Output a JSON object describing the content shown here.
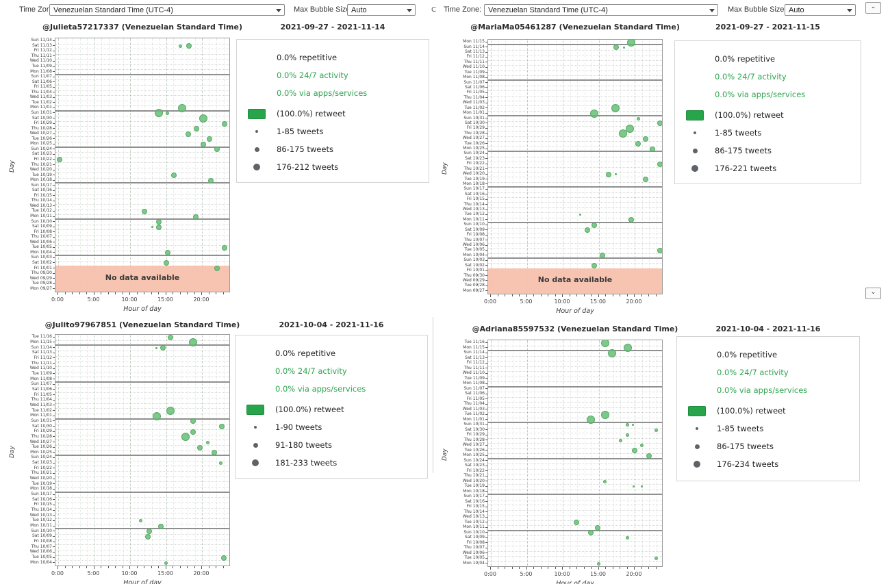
{
  "toolbar": {
    "left": {
      "time_zone_label": "Time Zone:",
      "time_zone_value": "Venezuelan Standard Time (UTC-4)",
      "max_bubble_size_label": "Max Bubble Size:",
      "max_bubble_size_value": "Auto"
    },
    "right": {
      "time_zone_label": "Time Zone:",
      "time_zone_value": "Venezuelan Standard Time (UTC-4)",
      "max_bubble_size_label": "Max Bubble Size:",
      "max_bubble_size_value": "Auto"
    },
    "stray_char": "C",
    "collapse_glyph": "⌄"
  },
  "colors": {
    "accent_green": "#2da44e",
    "bubble_green": "#69be77",
    "retweet_swatch": "#28a44a",
    "no_data_band": "#f7c1ad"
  },
  "chart_data": [
    {
      "type": "scatter",
      "title": "@Julieta57217337 (Venezuelan Standard Time)",
      "date_range": "2021-09-27 - 2021-11-14",
      "xlabel": "Hour of day",
      "ylabel": "Day",
      "x_ticks": [
        "0:00",
        "5:00",
        "10:00",
        "15:00",
        "20:00"
      ],
      "x_range_hours": [
        0,
        24
      ],
      "days": [
        "Sun 11/14",
        "Sat 11/13",
        "Fri 11/12",
        "Thu 11/11",
        "Wed 11/10",
        "Tue 11/09",
        "Mon 11/08",
        "Sun 11/07",
        "Sat 11/06",
        "Fri 11/05",
        "Thu 11/04",
        "Wed 11/03",
        "Tue 11/02",
        "Mon 11/01",
        "Sun 10/31",
        "Sat 10/30",
        "Fri 10/29",
        "Thu 10/28",
        "Wed 10/27",
        "Tue 10/26",
        "Mon 10/25",
        "Sun 10/24",
        "Sat 10/23",
        "Fri 10/22",
        "Thu 10/21",
        "Wed 10/20",
        "Tue 10/19",
        "Mon 10/18",
        "Sun 10/17",
        "Sat 10/16",
        "Fri 10/15",
        "Thu 10/14",
        "Wed 10/13",
        "Tue 10/12",
        "Mon 10/11",
        "Sun 10/10",
        "Sat 10/09",
        "Fri 10/08",
        "Thu 10/07",
        "Wed 10/06",
        "Tue 10/05",
        "Mon 10/04",
        "Sun 10/03",
        "Sat 10/02",
        "Fri 10/01",
        "Thu 09/30",
        "Wed 09/29",
        "Tue 09/28",
        "Mon 09/27"
      ],
      "no_data": {
        "label": "No data available",
        "rows_from_bottom": 5
      },
      "legend": {
        "repetitive": "0.0% repetitive",
        "always_on": "0.0% 24/7 activity",
        "apps": "0.0% via apps/services",
        "retweet": "(100.0%) retweet",
        "sizes": [
          "1-85 tweets",
          "86-175 tweets",
          "176-212 tweets"
        ]
      },
      "bubbles": [
        [
          "Sat 11/13",
          17.0,
          2
        ],
        [
          "Sat 11/13",
          18.2,
          3
        ],
        [
          "Mon 11/01",
          17.2,
          4
        ],
        [
          "Sun 10/31",
          14.0,
          4
        ],
        [
          "Sun 10/31",
          15.2,
          2
        ],
        [
          "Sat 10/30",
          20.2,
          4
        ],
        [
          "Fri 10/29",
          23.1,
          3
        ],
        [
          "Thu 10/28",
          19.2,
          3
        ],
        [
          "Wed 10/27",
          18.1,
          3
        ],
        [
          "Tue 10/26",
          21.0,
          3
        ],
        [
          "Mon 10/25",
          20.2,
          3
        ],
        [
          "Sun 10/24",
          22.1,
          3
        ],
        [
          "Fri 10/22",
          0.2,
          3
        ],
        [
          "Tue 10/19",
          16.1,
          3
        ],
        [
          "Mon 10/18",
          21.2,
          3
        ],
        [
          "Tue 10/12",
          12.0,
          3
        ],
        [
          "Mon 10/11",
          19.1,
          3
        ],
        [
          "Sun 10/10",
          14.0,
          3
        ],
        [
          "Sat 10/09",
          13.1,
          1
        ],
        [
          "Sat 10/09",
          14.0,
          3
        ],
        [
          "Tue 10/05",
          23.1,
          3
        ],
        [
          "Mon 10/04",
          15.2,
          3
        ],
        [
          "Sat 10/02",
          15.0,
          3
        ],
        [
          "Fri 10/01",
          22.1,
          3
        ]
      ]
    },
    {
      "type": "scatter",
      "title": "@MariaMa05461287 (Venezuelan Standard Time)",
      "date_range": "2021-09-27 - 2021-11-15",
      "xlabel": "Hour of day",
      "ylabel": "Day",
      "x_ticks": [
        "0:00",
        "5:00",
        "10:00",
        "15:00",
        "20:00"
      ],
      "x_range_hours": [
        0,
        24
      ],
      "days": [
        "Mon 11/15",
        "Sun 11/14",
        "Sat 11/13",
        "Fri 11/12",
        "Thu 11/11",
        "Wed 11/10",
        "Tue 11/09",
        "Mon 11/08",
        "Sun 11/07",
        "Sat 11/06",
        "Fri 11/05",
        "Thu 11/04",
        "Wed 11/03",
        "Tue 11/02",
        "Mon 11/01",
        "Sun 10/31",
        "Sat 10/30",
        "Fri 10/29",
        "Thu 10/28",
        "Wed 10/27",
        "Tue 10/26",
        "Mon 10/25",
        "Sun 10/24",
        "Sat 10/23",
        "Fri 10/22",
        "Thu 10/21",
        "Wed 10/20",
        "Tue 10/19",
        "Mon 10/18",
        "Sun 10/17",
        "Sat 10/16",
        "Fri 10/15",
        "Thu 10/14",
        "Wed 10/13",
        "Tue 10/12",
        "Mon 10/11",
        "Sun 10/10",
        "Sat 10/09",
        "Fri 10/08",
        "Thu 10/07",
        "Wed 10/06",
        "Tue 10/05",
        "Mon 10/04",
        "Sun 10/03",
        "Sat 10/02",
        "Fri 10/01",
        "Thu 09/30",
        "Wed 09/29",
        "Tue 09/28",
        "Mon 09/27"
      ],
      "no_data": {
        "label": "No data available",
        "rows_from_bottom": 5
      },
      "legend": {
        "repetitive": "0.0% repetitive",
        "always_on": "0.0% 24/7 activity",
        "apps": "0.0% via apps/services",
        "retweet": "(100.0%) retweet",
        "sizes": [
          "1-85 tweets",
          "86-175 tweets",
          "176-221 tweets"
        ]
      },
      "bubbles": [
        [
          "Mon 11/15",
          19.5,
          4
        ],
        [
          "Sun 11/14",
          17.4,
          3
        ],
        [
          "Sun 11/14",
          18.5,
          1
        ],
        [
          "Tue 11/02",
          17.3,
          4
        ],
        [
          "Mon 11/01",
          14.4,
          4
        ],
        [
          "Sun 10/31",
          20.5,
          2
        ],
        [
          "Sat 10/30",
          23.5,
          3
        ],
        [
          "Fri 10/29",
          19.3,
          4
        ],
        [
          "Thu 10/28",
          18.4,
          4
        ],
        [
          "Wed 10/27",
          21.5,
          3
        ],
        [
          "Tue 10/26",
          20.5,
          3
        ],
        [
          "Mon 10/25",
          22.5,
          3
        ],
        [
          "Fri 10/22",
          23.5,
          3
        ],
        [
          "Wed 10/20",
          16.4,
          3
        ],
        [
          "Wed 10/20",
          17.4,
          1
        ],
        [
          "Tue 10/19",
          21.5,
          3
        ],
        [
          "Tue 10/12",
          12.4,
          1
        ],
        [
          "Mon 10/11",
          19.5,
          3
        ],
        [
          "Sun 10/10",
          14.4,
          3
        ],
        [
          "Sat 10/09",
          13.4,
          3
        ],
        [
          "Tue 10/05",
          23.5,
          3
        ],
        [
          "Mon 10/04",
          15.5,
          3
        ],
        [
          "Sat 10/02",
          14.4,
          3
        ]
      ]
    },
    {
      "type": "scatter",
      "title": "@Julito97967851 (Venezuelan Standard Time)",
      "date_range": "2021-10-04 - 2021-11-16",
      "xlabel": "Hour of day",
      "ylabel": "Day",
      "x_ticks": [
        "0:00",
        "5:00",
        "10:00",
        "15:00",
        "20:00"
      ],
      "x_range_hours": [
        0,
        24
      ],
      "days": [
        "Tue 11/16",
        "Mon 11/15",
        "Sun 11/14",
        "Sat 11/13",
        "Fri 11/12",
        "Thu 11/11",
        "Wed 11/10",
        "Tue 11/09",
        "Mon 11/08",
        "Sun 11/07",
        "Sat 11/06",
        "Fri 11/05",
        "Thu 11/04",
        "Wed 11/03",
        "Tue 11/02",
        "Mon 11/01",
        "Sun 10/31",
        "Sat 10/30",
        "Fri 10/29",
        "Thu 10/28",
        "Wed 10/27",
        "Tue 10/26",
        "Mon 10/25",
        "Sun 10/24",
        "Sat 10/23",
        "Fri 10/22",
        "Thu 10/21",
        "Wed 10/20",
        "Tue 10/19",
        "Mon 10/18",
        "Sun 10/17",
        "Sat 10/16",
        "Fri 10/15",
        "Thu 10/14",
        "Wed 10/13",
        "Tue 10/12",
        "Mon 10/11",
        "Sun 10/10",
        "Sat 10/09",
        "Fri 10/08",
        "Thu 10/07",
        "Wed 10/06",
        "Tue 10/05",
        "Mon 10/04"
      ],
      "no_data": null,
      "legend": {
        "repetitive": "0.0% repetitive",
        "always_on": "0.0% 24/7 activity",
        "apps": "0.0% via apps/services",
        "retweet": "(100.0%) retweet",
        "sizes": [
          "1-90 tweets",
          "91-180 tweets",
          "181-233 tweets"
        ]
      },
      "bubbles": [
        [
          "Tue 11/16",
          15.6,
          3
        ],
        [
          "Mon 11/15",
          18.8,
          4
        ],
        [
          "Sun 11/14",
          13.7,
          1
        ],
        [
          "Sun 11/14",
          14.6,
          3
        ],
        [
          "Tue 11/02",
          15.6,
          4
        ],
        [
          "Mon 11/01",
          13.7,
          4
        ],
        [
          "Sun 10/31",
          18.8,
          3
        ],
        [
          "Sat 10/30",
          22.8,
          3
        ],
        [
          "Fri 10/29",
          18.8,
          3
        ],
        [
          "Thu 10/28",
          17.7,
          4
        ],
        [
          "Wed 10/27",
          20.8,
          2
        ],
        [
          "Tue 10/26",
          19.7,
          3
        ],
        [
          "Mon 10/25",
          21.7,
          3
        ],
        [
          "Sat 10/23",
          22.6,
          2
        ],
        [
          "Tue 10/12",
          11.5,
          2
        ],
        [
          "Mon 10/11",
          14.3,
          3
        ],
        [
          "Sun 10/10",
          12.7,
          3
        ],
        [
          "Sat 10/09",
          12.5,
          3
        ],
        [
          "Tue 10/05",
          23.0,
          3
        ],
        [
          "Mon 10/04",
          15.0,
          2
        ]
      ]
    },
    {
      "type": "scatter",
      "title": "@Adriana85597532 (Venezuelan Standard Time)",
      "date_range": "2021-10-04 - 2021-11-16",
      "xlabel": "Hour of day",
      "ylabel": "Day",
      "x_ticks": [
        "0:00",
        "5:00",
        "10:00",
        "15:00",
        "20:00"
      ],
      "x_range_hours": [
        0,
        24
      ],
      "days": [
        "Tue 11/16",
        "Mon 11/15",
        "Sun 11/14",
        "Sat 11/13",
        "Fri 11/12",
        "Thu 11/11",
        "Wed 11/10",
        "Tue 11/09",
        "Mon 11/08",
        "Sun 11/07",
        "Sat 11/06",
        "Fri 11/05",
        "Thu 11/04",
        "Wed 11/03",
        "Tue 11/02",
        "Mon 11/01",
        "Sun 10/31",
        "Sat 10/30",
        "Fri 10/29",
        "Thu 10/28",
        "Wed 10/27",
        "Tue 10/26",
        "Mon 10/25",
        "Sun 10/24",
        "Sat 10/23",
        "Fri 10/22",
        "Thu 10/21",
        "Wed 10/20",
        "Tue 10/19",
        "Mon 10/18",
        "Sun 10/17",
        "Sat 10/16",
        "Fri 10/15",
        "Thu 10/14",
        "Wed 10/13",
        "Tue 10/12",
        "Mon 10/11",
        "Sun 10/10",
        "Sat 10/09",
        "Fri 10/08",
        "Thu 10/07",
        "Wed 10/06",
        "Tue 10/05",
        "Mon 10/04"
      ],
      "no_data": null,
      "legend": {
        "repetitive": "0.0% repetitive",
        "always_on": "0.0% 24/7 activity",
        "apps": "0.0% via apps/services",
        "retweet": "(100.0%) retweet",
        "sizes": [
          "1-85 tweets",
          "86-175 tweets",
          "176-234 tweets"
        ]
      },
      "bubbles": [
        [
          "Tue 11/16",
          15.9,
          4
        ],
        [
          "Mon 11/15",
          19.0,
          4
        ],
        [
          "Sun 11/14",
          16.9,
          4
        ],
        [
          "Tue 11/02",
          15.9,
          4
        ],
        [
          "Mon 11/01",
          13.9,
          4
        ],
        [
          "Sun 10/31",
          19.0,
          2
        ],
        [
          "Sun 10/31",
          19.8,
          1
        ],
        [
          "Sat 10/30",
          23.0,
          2
        ],
        [
          "Fri 10/29",
          19.0,
          2
        ],
        [
          "Thu 10/28",
          18.0,
          2
        ],
        [
          "Wed 10/27",
          21.0,
          2
        ],
        [
          "Tue 10/26",
          20.0,
          3
        ],
        [
          "Mon 10/25",
          22.0,
          3
        ],
        [
          "Wed 10/20",
          15.9,
          2
        ],
        [
          "Tue 10/19",
          19.9,
          1
        ],
        [
          "Tue 10/19",
          21.0,
          1
        ],
        [
          "Tue 10/12",
          11.9,
          3
        ],
        [
          "Mon 10/11",
          14.9,
          3
        ],
        [
          "Sun 10/10",
          13.9,
          3
        ],
        [
          "Sat 10/09",
          19.0,
          2
        ],
        [
          "Tue 10/05",
          23.0,
          2
        ],
        [
          "Mon 10/04",
          15.0,
          2
        ]
      ]
    }
  ]
}
